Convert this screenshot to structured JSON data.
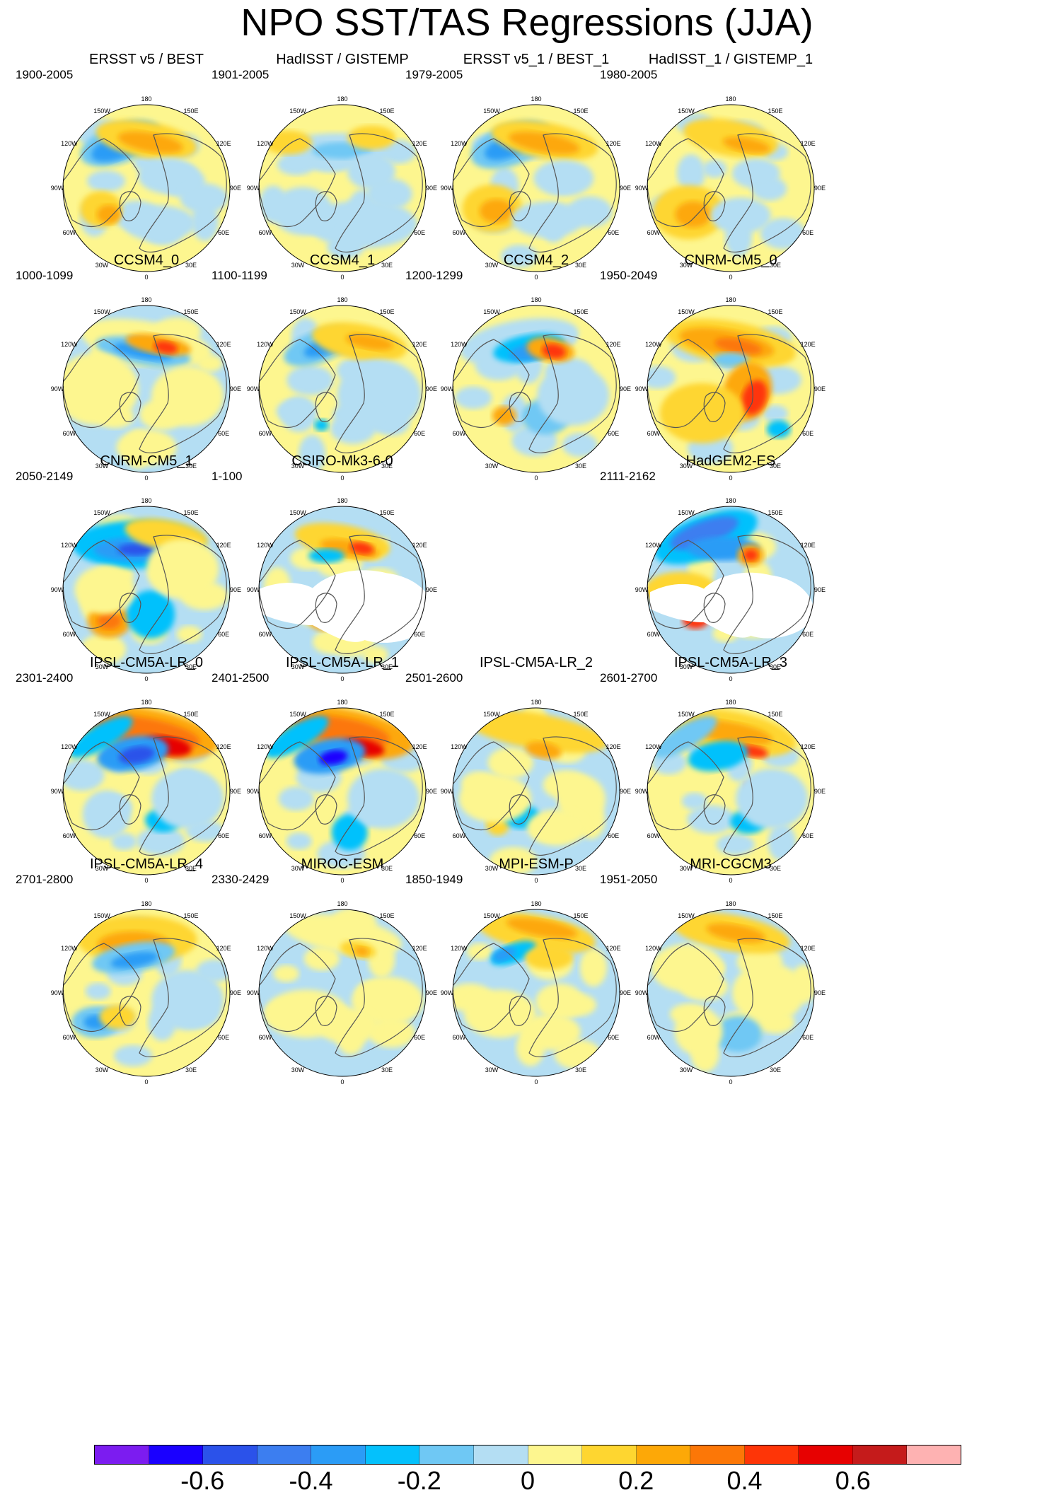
{
  "title": "NPO SST/TAS Regressions (JJA)",
  "lon_labels": [
    "180",
    "150E",
    "120E",
    "90E",
    "60E",
    "30E",
    "0",
    "30W",
    "60W",
    "90W",
    "120W",
    "150W"
  ],
  "panels": [
    {
      "title": "ERSST v5 / BEST",
      "years": "1900-2005",
      "style": "obs_a",
      "missing": "none"
    },
    {
      "title": "HadISST / GISTEMP",
      "years": "1901-2005",
      "style": "obs_b",
      "missing": "none"
    },
    {
      "title": "ERSST v5_1 / BEST_1",
      "years": "1979-2005",
      "style": "obs_c",
      "missing": "none"
    },
    {
      "title": "HadISST_1 / GISTEMP_1",
      "years": "1980-2005",
      "style": "obs_d",
      "missing": "none"
    },
    {
      "title": "CCSM4_0",
      "years": "1000-1099",
      "style": "ccsm_a",
      "missing": "none"
    },
    {
      "title": "CCSM4_1",
      "years": "1100-1199",
      "style": "ccsm_b",
      "missing": "none"
    },
    {
      "title": "CCSM4_2",
      "years": "1200-1299",
      "style": "ccsm_c",
      "missing": "none"
    },
    {
      "title": "CNRM-CM5_0",
      "years": "1950-2049",
      "style": "cnrm_a",
      "missing": "none"
    },
    {
      "title": "CNRM-CM5_1",
      "years": "2050-2149",
      "style": "cnrm_b",
      "missing": "none"
    },
    {
      "title": "CSIRO-Mk3-6-0",
      "years": "1-100",
      "style": "csiro",
      "missing": "land_all"
    },
    null,
    {
      "title": "HadGEM2-ES",
      "years": "2111-2162",
      "style": "hadgem",
      "missing": "land_north"
    },
    {
      "title": "IPSL-CM5A-LR_0",
      "years": "2301-2400",
      "style": "ipsl_a",
      "missing": "none"
    },
    {
      "title": "IPSL-CM5A-LR_1",
      "years": "2401-2500",
      "style": "ipsl_b",
      "missing": "none"
    },
    {
      "title": "IPSL-CM5A-LR_2",
      "years": "2501-2600",
      "style": "ipsl_c",
      "missing": "none"
    },
    {
      "title": "IPSL-CM5A-LR_3",
      "years": "2601-2700",
      "style": "ipsl_d",
      "missing": "none"
    },
    {
      "title": "IPSL-CM5A-LR_4",
      "years": "2701-2800",
      "style": "ipsl_e",
      "missing": "none"
    },
    {
      "title": "MIROC-ESM",
      "years": "2330-2429",
      "style": "miroc",
      "missing": "none"
    },
    {
      "title": "MPI-ESM-P",
      "years": "1850-1949",
      "style": "mpi",
      "missing": "none"
    },
    {
      "title": "MRI-CGCM3",
      "years": "1951-2050",
      "style": "mri",
      "missing": "none"
    }
  ],
  "colorbar": {
    "colors": [
      "#7c1cf0",
      "#1a00ff",
      "#2b52ea",
      "#3c7ef0",
      "#2b9cf6",
      "#04c1fc",
      "#6fc8f4",
      "#b4def3",
      "#fdf68f",
      "#fed630",
      "#fda807",
      "#fc7707",
      "#fe3507",
      "#e70101",
      "#c51b1b",
      "#feb2b2"
    ],
    "tick_labels": [
      "-0.6",
      "-0.4",
      "-0.2",
      "0",
      "0.2",
      "0.4",
      "0.6"
    ],
    "tick_values": [
      -0.6,
      -0.4,
      -0.2,
      0,
      0.2,
      0.4,
      0.6
    ]
  }
}
